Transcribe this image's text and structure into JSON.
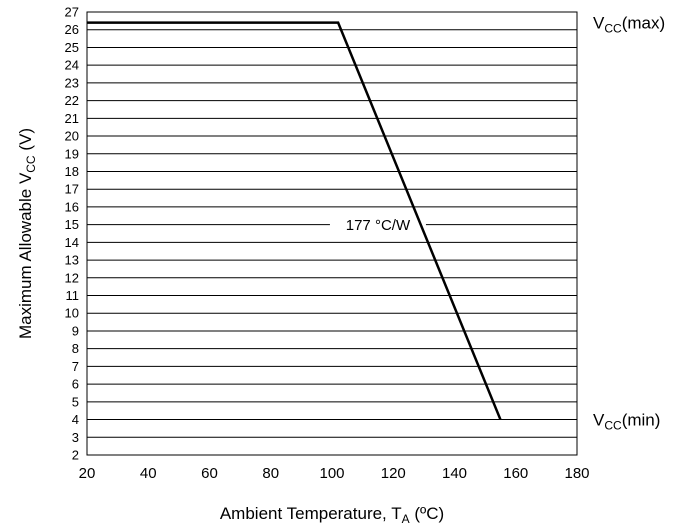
{
  "chart_data": {
    "type": "line",
    "xlabel": "Ambient Temperature, T",
    "xlabel_sub": "A",
    "xlabel_suffix": " (ºC)",
    "ylabel": "Maximum Allowable V",
    "ylabel_sub": "CC",
    "ylabel_suffix": " (V)",
    "xlim": [
      20,
      180
    ],
    "ylim": [
      2,
      27
    ],
    "x_ticks": [
      20,
      40,
      60,
      80,
      100,
      120,
      140,
      160,
      180
    ],
    "y_ticks": [
      2,
      3,
      4,
      5,
      6,
      7,
      8,
      9,
      10,
      11,
      12,
      13,
      14,
      15,
      16,
      17,
      18,
      19,
      20,
      21,
      22,
      23,
      24,
      25,
      26,
      27
    ],
    "grid": {
      "horizontal": true,
      "vertical": false
    },
    "series": [
      {
        "x": [
          20,
          102,
          155
        ],
        "y": [
          26.4,
          26.4,
          4
        ],
        "color": "#000000"
      }
    ],
    "annotations": [
      {
        "text": "177 °C/W",
        "x": 115,
        "y": 15
      }
    ],
    "right_labels": [
      {
        "main": "V",
        "sub": "CC",
        "suffix": "(max)",
        "y": 26.4
      },
      {
        "main": "V",
        "sub": "CC",
        "suffix": "(min)",
        "y": 4
      }
    ]
  }
}
